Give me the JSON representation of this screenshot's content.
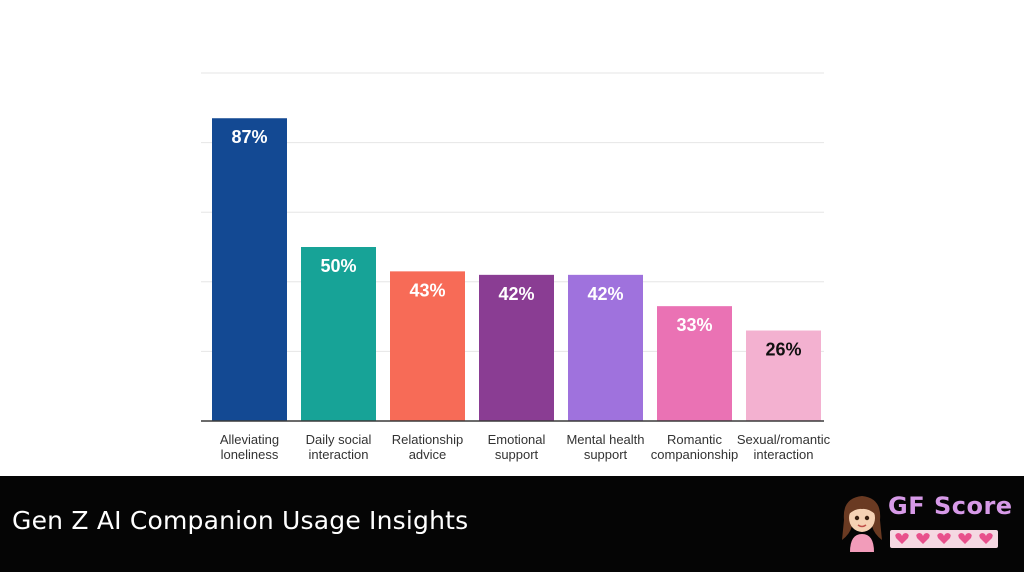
{
  "chart_data": {
    "type": "bar",
    "categories": [
      [
        "Alleviating",
        "loneliness"
      ],
      [
        "Daily social",
        "interaction"
      ],
      [
        "Relationship",
        "advice"
      ],
      [
        "Emotional",
        "support"
      ],
      [
        "Mental health",
        "support"
      ],
      [
        "Romantic",
        "companionship"
      ],
      [
        "Sexual/romantic",
        "interaction"
      ]
    ],
    "values": [
      87,
      50,
      43,
      42,
      42,
      33,
      26
    ],
    "data_labels": [
      "87%",
      "50%",
      "43%",
      "42%",
      "42%",
      "33%",
      "26%"
    ],
    "colors": [
      "#134993",
      "#17a397",
      "#f76b57",
      "#8a3d93",
      "#9f72dd",
      "#ea72b4",
      "#f3b1d0"
    ],
    "label_colors": [
      "#ffffff",
      "#ffffff",
      "#ffffff",
      "#ffffff",
      "#ffffff",
      "#ffffff",
      "#111111"
    ],
    "ylim": [
      0,
      100
    ],
    "grid": true,
    "title": "",
    "xlabel": "",
    "ylabel": ""
  },
  "caption": "Gen Z AI Companion Usage Insights",
  "logo": {
    "text": "GF Score",
    "text_color": "#d79ae8",
    "heart_color": "#e8508c",
    "heart_count": 5
  }
}
